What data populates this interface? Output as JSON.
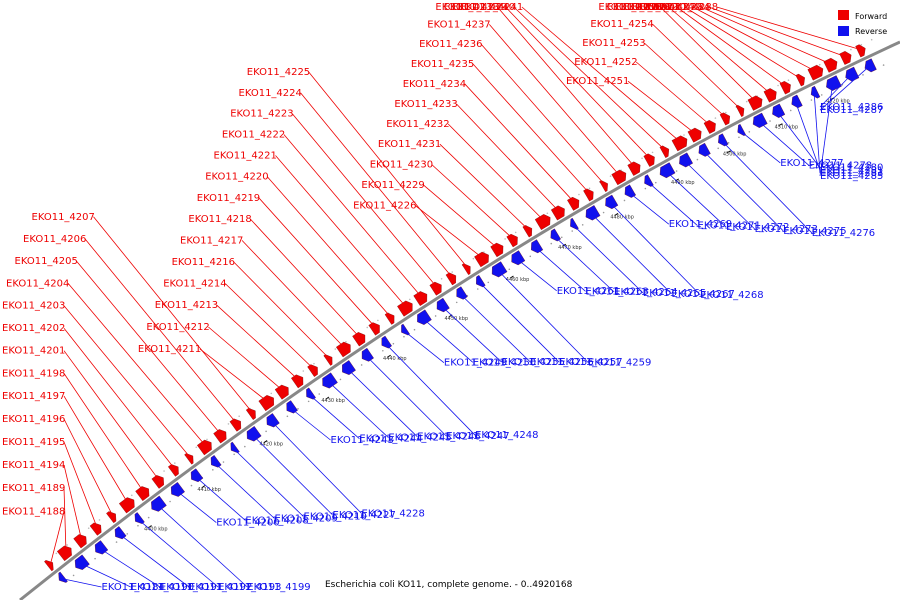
{
  "caption": "Escherichia coli KO11, complete genome. - 0..4920168",
  "legend": [
    {
      "label": "Forward",
      "color": "#ee0000"
    },
    {
      "label": "Reverse",
      "color": "#1111ee"
    }
  ],
  "colors": {
    "forward": "#ee0000",
    "reverse": "#1111ee",
    "backbone": "#888888"
  },
  "ticks": [
    "4400 kbp",
    "4410 kbp",
    "4420 kbp",
    "4430 kbp",
    "4440 kbp",
    "4450 kbp",
    "4460 kbp",
    "4470 kbp",
    "4480 kbp",
    "4490 kbp",
    "4500 kbp",
    "4510 kbp",
    "4520 kbp"
  ],
  "forward_labels": [
    "EKO11_4188",
    "EKO11_4189",
    "EKO11_4194",
    "EKO11_4195",
    "EKO11_4196",
    "EKO11_4197",
    "EKO11_4198",
    "EKO11_4201",
    "EKO11_4202",
    "EKO11_4203",
    "EKO11_4204",
    "EKO11_4205",
    "EKO11_4206",
    "EKO11_4207",
    "EKO11_4211",
    "EKO11_4212",
    "EKO11_4213",
    "EKO11_4214",
    "EKO11_4216",
    "EKO11_4217",
    "EKO11_4218",
    "EKO11_4219",
    "EKO11_4220",
    "EKO11_4221",
    "EKO11_4222",
    "EKO11_4223",
    "EKO11_4224",
    "EKO11_4225",
    "EKO11_4226",
    "EKO11_4229",
    "EKO11_4230",
    "EKO11_4231",
    "EKO11_4232",
    "EKO11_4233",
    "EKO11_4234",
    "EKO11_4235",
    "EKO11_4236",
    "EKO11_4237",
    "EKO11_4238",
    "EKO11_4239",
    "EKO11_4240",
    "EKO11_4241",
    "EKO11_4251",
    "EKO11_4252",
    "EKO11_4253",
    "EKO11_4254",
    "EKO11_4258",
    "EKO11_4260",
    "EKO11_4262",
    "EKO11_4270",
    "EKO11_4274",
    "EKO11_4279",
    "EKO11_4284",
    "EKO11_4288"
  ],
  "reverse_labels": [
    "EKO11_4184",
    "EKO11_4190",
    "EKO11_4191",
    "EKO11_4192",
    "EKO11_4193",
    "EKO11_4199",
    "EKO11_4200",
    "EKO11_4208",
    "EKO11_4209",
    "EKO11_4210",
    "EKO11_4227",
    "EKO11_4228",
    "EKO11_4243",
    "EKO11_4244",
    "EKO11_4245",
    "EKO11_4246",
    "EKO11_4247",
    "EKO11_4248",
    "EKO11_4249",
    "EKO11_4250",
    "EKO11_4255",
    "EKO11_4256",
    "EKO11_4257",
    "EKO11_4259",
    "EKO11_4261",
    "EKO11_4263",
    "EKO11_4264",
    "EKO11_4265",
    "EKO11_4267",
    "EKO11_4268",
    "EKO11_4269",
    "EKO11_4271",
    "EKO11_4272",
    "EKO11_4273",
    "EKO11_4275",
    "EKO11_4276",
    "EKO11_4277",
    "EKO11_4278",
    "EKO11_4280",
    "EKO11_4281",
    "EKO11_4283",
    "EKO11_4285",
    "EKO11_4286",
    "EKO11_4287"
  ]
}
